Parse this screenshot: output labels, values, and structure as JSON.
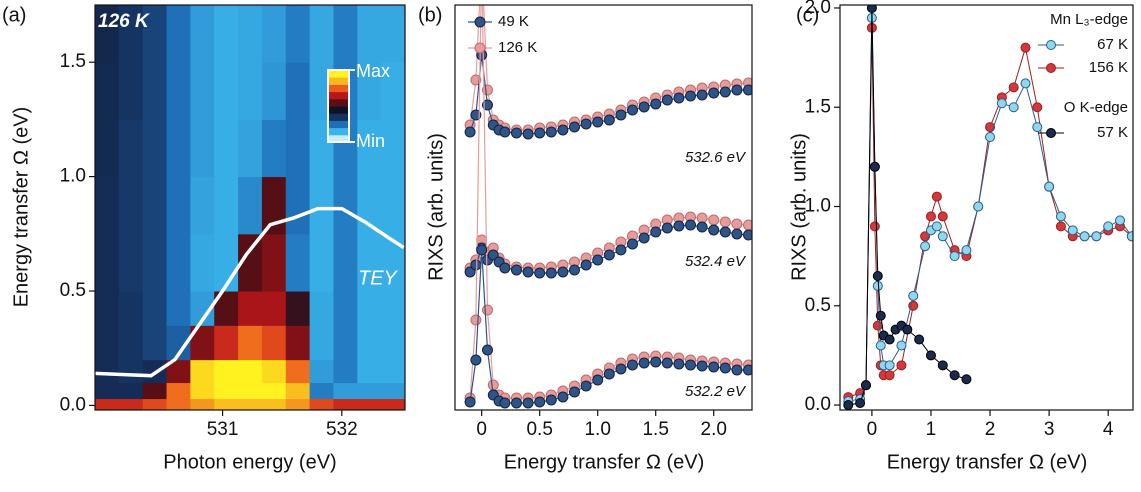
{
  "chart_data": [
    {
      "type": "heatmap",
      "panel": "(a)",
      "annotation": "126 K",
      "x_label": "Photon energy (eV)",
      "y_label": "Energy transfer Ω (eV)",
      "xlim": [
        529.93,
        532.53
      ],
      "ylim": [
        -0.02,
        1.75
      ],
      "xticks": [
        531,
        532
      ],
      "yticks": [
        {
          "value": 0,
          "label": "0.0"
        },
        {
          "value": 0.5,
          "label": "0.5"
        },
        {
          "value": 1,
          "label": "1.0"
        },
        {
          "value": 1.5,
          "label": "1.5"
        }
      ],
      "xbins": [
        529.93,
        530.13,
        530.33,
        530.53,
        530.73,
        530.93,
        531.13,
        531.33,
        531.53,
        531.73,
        531.93,
        532.13,
        532.33,
        532.53
      ],
      "ybins": [
        -0.02,
        0.03,
        0.1,
        0.2,
        0.35,
        0.5,
        0.75,
        1.0,
        1.25,
        1.5,
        1.75
      ],
      "zlim": [
        0,
        1
      ],
      "colorscale": [
        "#c8ecfa",
        "#3ab4ea",
        "#1f6fb8",
        "#16325f",
        "#0c1326",
        "#5a0f14",
        "#b8161b",
        "#ec5a1c",
        "#f9b81e",
        "#fff21e"
      ],
      "colorbar_labels": [
        "Max",
        "Min"
      ],
      "z": [
        [
          0.7,
          0.7,
          0.75,
          0.8,
          0.85,
          0.9,
          0.9,
          0.9,
          0.85,
          0.75,
          0.7,
          0.7,
          0.7
        ],
        [
          0.35,
          0.35,
          0.55,
          0.8,
          0.95,
          1.0,
          1.0,
          1.0,
          0.9,
          0.2,
          0.15,
          0.15,
          0.15
        ],
        [
          0.35,
          0.33,
          0.35,
          0.6,
          0.95,
          1.0,
          1.0,
          0.95,
          0.8,
          0.15,
          0.2,
          0.12,
          0.12
        ],
        [
          0.35,
          0.33,
          0.3,
          0.25,
          0.6,
          0.7,
          0.8,
          0.75,
          0.6,
          0.13,
          0.2,
          0.12,
          0.12
        ],
        [
          0.35,
          0.33,
          0.3,
          0.22,
          0.15,
          0.55,
          0.65,
          0.65,
          0.5,
          0.13,
          0.2,
          0.12,
          0.12
        ],
        [
          0.35,
          0.32,
          0.3,
          0.22,
          0.13,
          0.12,
          0.55,
          0.6,
          0.2,
          0.12,
          0.2,
          0.12,
          0.12
        ],
        [
          0.35,
          0.32,
          0.3,
          0.22,
          0.14,
          0.12,
          0.18,
          0.55,
          0.22,
          0.12,
          0.2,
          0.12,
          0.12
        ],
        [
          0.36,
          0.32,
          0.3,
          0.22,
          0.15,
          0.12,
          0.14,
          0.2,
          0.22,
          0.12,
          0.2,
          0.12,
          0.12
        ],
        [
          0.36,
          0.33,
          0.3,
          0.22,
          0.15,
          0.12,
          0.13,
          0.16,
          0.22,
          0.13,
          0.2,
          0.13,
          0.12
        ],
        [
          0.37,
          0.33,
          0.3,
          0.22,
          0.15,
          0.12,
          0.13,
          0.15,
          0.2,
          0.13,
          0.2,
          0.13,
          0.13
        ]
      ],
      "line": {
        "name": "TEY",
        "color": "#ffffff",
        "x": [
          529.93,
          530.4,
          530.6,
          530.8,
          531.0,
          531.2,
          531.4,
          531.6,
          531.8,
          532.0,
          532.2,
          532.4,
          532.52
        ],
        "values": [
          0.14,
          0.13,
          0.2,
          0.35,
          0.5,
          0.66,
          0.79,
          0.82,
          0.86,
          0.86,
          0.8,
          0.73,
          0.69
        ]
      }
    },
    {
      "type": "waterfall",
      "panel": "(b)",
      "x_label": "Energy transfer Ω (eV)",
      "y_label": "RIXS  (arb. units)",
      "xlim": [
        -0.23,
        2.33
      ],
      "ylim": [
        0,
        4.05
      ],
      "xticks": [
        0,
        0.5,
        {
          "value": 1,
          "label": "1.0"
        },
        1.5,
        {
          "value": 2,
          "label": "2.0"
        }
      ],
      "series": [
        {
          "name": "49 K",
          "color": "#2f5487",
          "edgecolor": "#14233f"
        },
        {
          "name": "126 K",
          "color": "#e79c9c",
          "edgecolor": "#c06a6a"
        }
      ],
      "x": [
        -0.1,
        -0.05,
        0,
        0.05,
        0.1,
        0.15,
        0.2,
        0.3,
        0.4,
        0.5,
        0.6,
        0.7,
        0.8,
        0.9,
        1.0,
        1.1,
        1.2,
        1.3,
        1.4,
        1.5,
        1.6,
        1.7,
        1.8,
        1.9,
        2.0,
        2.1,
        2.2,
        2.3
      ],
      "spectra": [
        {
          "label": "532.6 eV",
          "values": [
            [
              2.78,
              2.95,
              3.55,
              3.05,
              2.85,
              2.8,
              2.78,
              2.77,
              2.76,
              2.77,
              2.78,
              2.8,
              2.83,
              2.86,
              2.88,
              2.9,
              2.95,
              3.0,
              3.03,
              3.06,
              3.1,
              3.12,
              3.14,
              3.15,
              3.17,
              3.18,
              3.2,
              3.2
            ],
            [
              2.85,
              3.3,
              4.5,
              3.2,
              2.9,
              2.85,
              2.82,
              2.8,
              2.8,
              2.82,
              2.83,
              2.85,
              2.88,
              2.9,
              2.93,
              2.96,
              3.0,
              3.05,
              3.08,
              3.12,
              3.15,
              3.18,
              3.2,
              3.22,
              3.23,
              3.25,
              3.26,
              3.27
            ]
          ]
        },
        {
          "label": "532.4 eV",
          "values": [
            [
              1.38,
              1.45,
              1.62,
              1.5,
              1.55,
              1.48,
              1.42,
              1.4,
              1.38,
              1.37,
              1.37,
              1.38,
              1.4,
              1.45,
              1.5,
              1.55,
              1.6,
              1.66,
              1.72,
              1.78,
              1.82,
              1.84,
              1.85,
              1.83,
              1.8,
              1.78,
              1.76,
              1.75
            ],
            [
              1.42,
              1.5,
              1.7,
              1.58,
              1.62,
              1.52,
              1.46,
              1.43,
              1.42,
              1.42,
              1.43,
              1.45,
              1.48,
              1.52,
              1.57,
              1.62,
              1.68,
              1.74,
              1.8,
              1.86,
              1.9,
              1.92,
              1.93,
              1.92,
              1.9,
              1.88,
              1.86,
              1.85
            ]
          ]
        },
        {
          "label": "532.2 eV",
          "values": [
            [
              0.08,
              0.5,
              1.6,
              0.6,
              0.15,
              0.09,
              0.07,
              0.07,
              0.07,
              0.08,
              0.1,
              0.13,
              0.18,
              0.24,
              0.3,
              0.36,
              0.41,
              0.45,
              0.47,
              0.48,
              0.47,
              0.46,
              0.45,
              0.44,
              0.43,
              0.42,
              0.4,
              0.4
            ],
            [
              0.12,
              0.9,
              4.5,
              1.0,
              0.25,
              0.15,
              0.12,
              0.12,
              0.12,
              0.13,
              0.15,
              0.19,
              0.24,
              0.3,
              0.36,
              0.42,
              0.47,
              0.51,
              0.53,
              0.54,
              0.53,
              0.52,
              0.5,
              0.49,
              0.48,
              0.47,
              0.46,
              0.45
            ]
          ]
        }
      ]
    },
    {
      "type": "line",
      "panel": "(c)",
      "x_label": "Energy transfer Ω (eV)",
      "y_label": "RIXS  (arb. units)",
      "xlim": [
        -0.54,
        4.42
      ],
      "ylim": [
        -0.025,
        2.015
      ],
      "xticks": [
        0,
        1,
        2,
        3,
        4
      ],
      "yticks": [
        {
          "value": 0,
          "label": "0.0"
        },
        {
          "value": 0.5,
          "label": "0.5"
        },
        {
          "value": 1,
          "label": "1.0"
        },
        {
          "value": 1.5,
          "label": "1.5"
        },
        {
          "value": 2,
          "label": "2.0"
        }
      ],
      "groups": [
        {
          "title": "Mn L₃-edge",
          "series": [
            {
              "name": "67 K",
              "color": "#8fd6ef",
              "edgecolor": "#2a5f8a",
              "x": [
                -0.4,
                -0.2,
                -0.1,
                0,
                0.05,
                0.1,
                0.15,
                0.2,
                0.3,
                0.5,
                0.7,
                0.9,
                1.0,
                1.1,
                1.2,
                1.4,
                1.6,
                1.8,
                2.0,
                2.2,
                2.4,
                2.6,
                2.8,
                3.0,
                3.2,
                3.4,
                3.6,
                3.8,
                4.0,
                4.2,
                4.4
              ],
              "values": [
                0.02,
                0.03,
                0.1,
                1.95,
                1.2,
                0.6,
                0.3,
                0.2,
                0.2,
                0.3,
                0.55,
                0.8,
                0.88,
                0.9,
                0.85,
                0.75,
                0.78,
                1.0,
                1.35,
                1.52,
                1.5,
                1.62,
                1.4,
                1.1,
                0.95,
                0.88,
                0.85,
                0.85,
                0.9,
                0.93,
                0.85
              ]
            },
            {
              "name": "156 K",
              "color": "#d4373c",
              "edgecolor": "#9a1f22",
              "x": [
                -0.4,
                -0.2,
                -0.1,
                0,
                0.05,
                0.1,
                0.15,
                0.2,
                0.3,
                0.5,
                0.7,
                0.9,
                1.0,
                1.1,
                1.2,
                1.4,
                1.6,
                1.8,
                2.0,
                2.2,
                2.4,
                2.6,
                2.8,
                3.0,
                3.2,
                3.4,
                3.6,
                3.8,
                4.0,
                4.2,
                4.4
              ],
              "values": [
                0.04,
                0.06,
                0.1,
                1.9,
                0.9,
                0.4,
                0.2,
                0.15,
                0.15,
                0.2,
                0.5,
                0.85,
                0.95,
                1.05,
                0.95,
                0.78,
                0.75,
                1.0,
                1.4,
                1.55,
                1.6,
                1.8,
                1.5,
                1.1,
                0.9,
                0.85,
                0.85,
                0.85,
                0.88,
                0.9,
                0.85
              ]
            }
          ]
        },
        {
          "title": "O K-edge",
          "series": [
            {
              "name": "57 K",
              "color": "#1b2b50",
              "edgecolor": "#000000",
              "x": [
                -0.4,
                -0.2,
                -0.1,
                0,
                0.05,
                0.1,
                0.15,
                0.2,
                0.3,
                0.4,
                0.5,
                0.6,
                0.8,
                1.0,
                1.2,
                1.4,
                1.6
              ],
              "values": [
                0,
                0.01,
                0.1,
                2.0,
                1.2,
                0.65,
                0.45,
                0.35,
                0.33,
                0.38,
                0.4,
                0.38,
                0.33,
                0.25,
                0.2,
                0.15,
                0.13
              ]
            }
          ]
        }
      ]
    }
  ]
}
